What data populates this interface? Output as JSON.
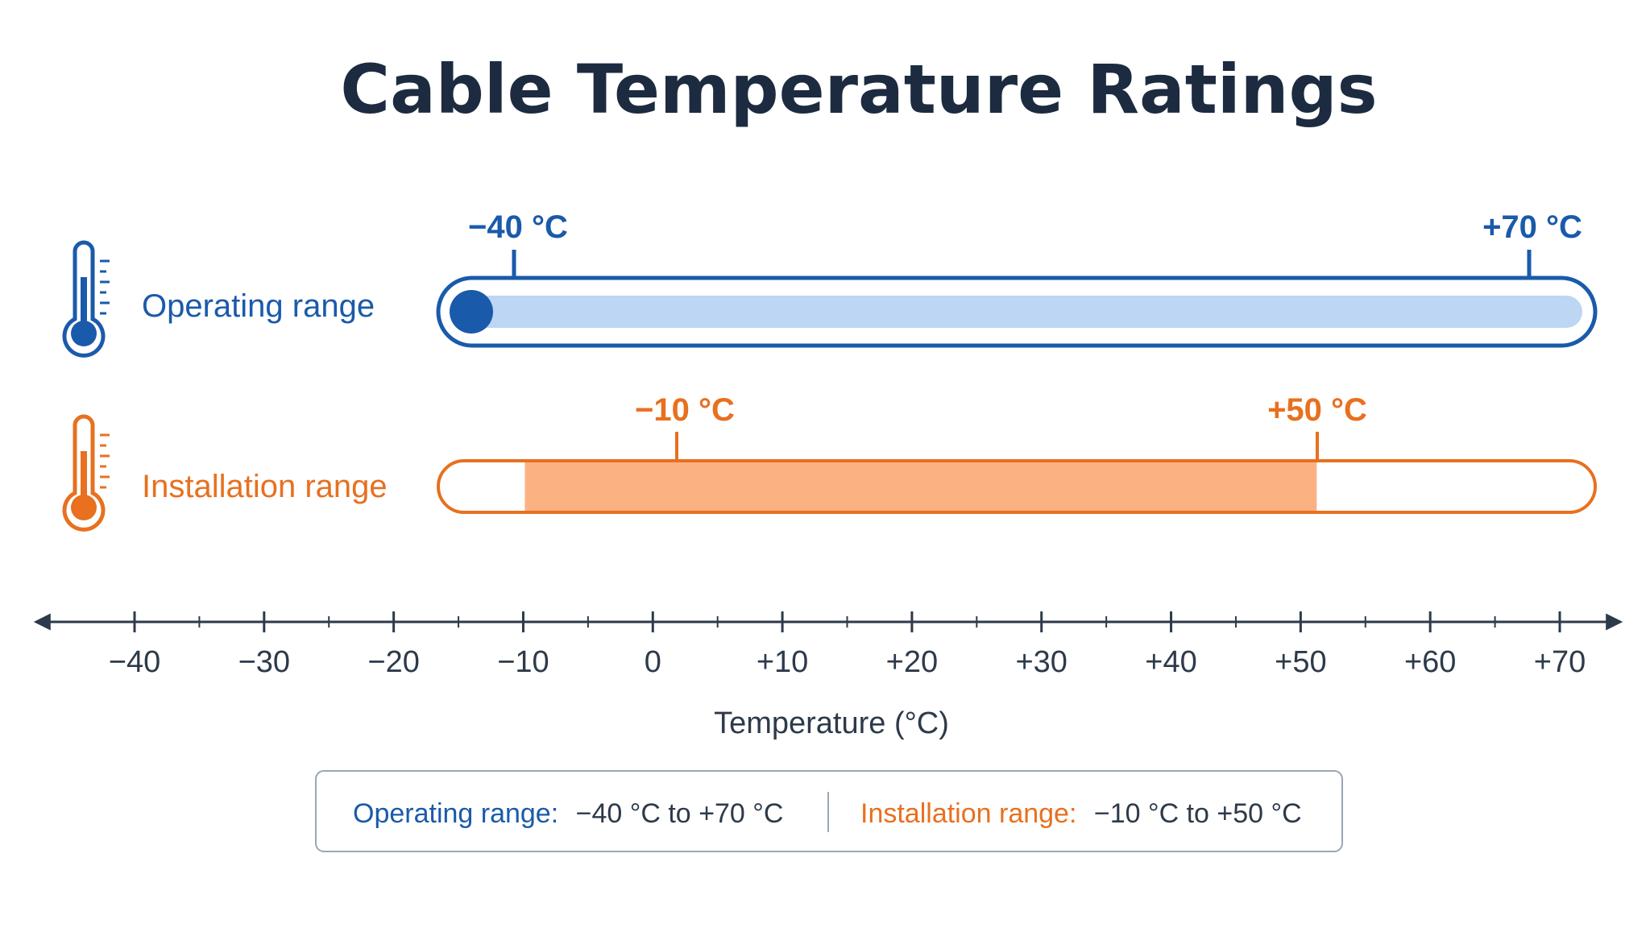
{
  "chart_data": {
    "type": "range",
    "title": "Cable Temperature Ratings",
    "xlabel": "Temperature (°C)",
    "xlim": [
      -40,
      70
    ],
    "ticks": [
      {
        "value": -40,
        "label": "−40"
      },
      {
        "value": -30,
        "label": "−30"
      },
      {
        "value": -20,
        "label": "−20"
      },
      {
        "value": -10,
        "label": "−10"
      },
      {
        "value": 0,
        "label": "0"
      },
      {
        "value": 10,
        "label": "+10"
      },
      {
        "value": 20,
        "label": "+20"
      },
      {
        "value": 30,
        "label": "+30"
      },
      {
        "value": 40,
        "label": "+40"
      },
      {
        "value": 50,
        "label": "+50"
      },
      {
        "value": 60,
        "label": "+60"
      },
      {
        "value": 70,
        "label": "+70"
      }
    ],
    "series": [
      {
        "name": "Operating range",
        "min": -40,
        "max": 70,
        "min_label": "−40 °C",
        "max_label": "+70 °C",
        "color": "#1a5aaa",
        "fill": "#bcd6f3",
        "style": "fill-bar"
      },
      {
        "name": "Installation range",
        "min": -10,
        "max": 50,
        "min_label": "−10 °C",
        "max_label": "+50 °C",
        "color": "#e8701f",
        "fill": "#fbb283",
        "style": "segment"
      }
    ],
    "legend": {
      "placement": "bottom",
      "items": [
        {
          "name": "Operating range:",
          "text": "−40 °C to +70 °C",
          "color": "#1a5aaa"
        },
        {
          "name": "Installation range:",
          "text": "−10 °C to +50 °C",
          "color": "#e8701f"
        }
      ]
    }
  },
  "colors": {
    "title": "#1c2b40",
    "axis": "#2d3a4a",
    "operating": "#1a5aaa",
    "installation": "#e8701f"
  },
  "icons": {
    "operating": "thermometer-icon",
    "installation": "thermometer-icon"
  }
}
